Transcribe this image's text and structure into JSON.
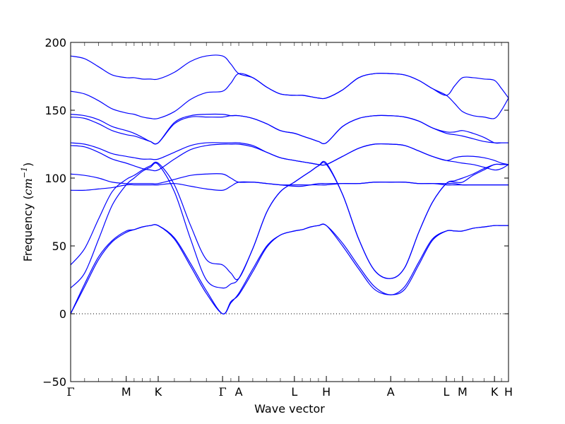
{
  "chart_data": {
    "type": "line",
    "title": "",
    "xlabel": "Wave vector",
    "ylabel": "Frequency (cm⁻¹)",
    "ylabel_parts": {
      "main": "Frequency (",
      "unit": "cm",
      "exp": "−1",
      "close": ")"
    },
    "ylim": [
      -50,
      200
    ],
    "yticks": [
      -50,
      0,
      50,
      100,
      150,
      200
    ],
    "ytick_labels": [
      "−50",
      "0",
      "50",
      "100",
      "150",
      "200"
    ],
    "xlim": [
      0,
      10
    ],
    "kpoints": [
      {
        "label": "Γ",
        "x": 0.0
      },
      {
        "label": "M",
        "x": 1.27
      },
      {
        "label": "K",
        "x": 2.0
      },
      {
        "label": "Γ",
        "x": 3.47
      },
      {
        "label": "A",
        "x": 3.84
      },
      {
        "label": "L",
        "x": 5.11
      },
      {
        "label": "H",
        "x": 5.84
      },
      {
        "label": "A",
        "x": 7.31
      },
      {
        "label": "L",
        "x": 8.58
      },
      {
        "label": "M",
        "x": 8.95
      },
      {
        "label": "K",
        "x": 9.68
      },
      {
        "label": "H",
        "x": 10.0
      }
    ],
    "zero_line": {
      "y": 0,
      "style": "dotted"
    },
    "grid": false,
    "series_color": "#0000ff",
    "series": [
      {
        "x": [
          0,
          0.32,
          0.64,
          0.95,
          1.27,
          1.45,
          1.64,
          1.82,
          2.0,
          2.37,
          2.74,
          3.1,
          3.47,
          3.66,
          3.84,
          4.16,
          4.48,
          4.79,
          5.11,
          5.29,
          5.48,
          5.66,
          5.84,
          6.21,
          6.58,
          6.94,
          7.31,
          7.63,
          7.95,
          8.26,
          8.58,
          8.77,
          8.95,
          9.19,
          9.44,
          9.68,
          9.84,
          10.0
        ],
        "y": [
          0,
          20,
          40,
          53,
          60,
          62,
          64,
          65,
          65,
          55,
          35,
          15,
          0,
          8,
          15,
          33,
          50,
          58,
          61,
          62,
          64,
          65,
          65,
          52,
          35,
          20,
          14,
          20,
          38,
          55,
          61,
          61,
          61,
          63,
          64,
          65,
          65,
          65
        ]
      },
      {
        "x": [
          0,
          0.32,
          0.64,
          0.95,
          1.27,
          1.45,
          1.64,
          1.82,
          2.0,
          2.37,
          2.74,
          3.1,
          3.47,
          3.66,
          3.84,
          4.16,
          4.48,
          4.79,
          5.11,
          5.29,
          5.48,
          5.66,
          5.84,
          6.21,
          6.58,
          6.94,
          7.31,
          7.63,
          7.95,
          8.26,
          8.58,
          8.77,
          8.95,
          9.19,
          9.44,
          9.68,
          9.84,
          10.0
        ],
        "y": [
          0,
          22,
          42,
          54,
          61,
          62,
          64,
          65,
          65,
          56,
          37,
          17,
          0,
          9,
          14,
          31,
          49,
          58,
          61,
          62,
          64,
          65,
          65,
          50,
          33,
          18,
          14,
          18,
          36,
          54,
          61,
          61,
          61,
          63,
          64,
          65,
          65,
          65
        ]
      },
      {
        "x": [
          0,
          0.32,
          0.64,
          0.95,
          1.27,
          1.45,
          1.64,
          1.82,
          2.0,
          2.37,
          2.74,
          3.1,
          3.47,
          3.66,
          3.84,
          4.16,
          4.48,
          4.79,
          5.11,
          5.29,
          5.48,
          5.66,
          5.84,
          6.21,
          6.58,
          6.94,
          7.31,
          7.63,
          7.95,
          8.26,
          8.58,
          8.77,
          8.95,
          9.19,
          9.44,
          9.68,
          9.84,
          10.0
        ],
        "y": [
          19,
          30,
          55,
          80,
          95,
          100,
          105,
          108,
          110,
          90,
          55,
          25,
          19,
          22,
          26,
          48,
          75,
          90,
          97,
          101,
          105,
          109,
          110,
          88,
          55,
          32,
          26,
          34,
          60,
          82,
          96,
          97,
          97,
          102,
          106,
          110,
          110,
          110
        ]
      },
      {
        "x": [
          0,
          0.32,
          0.64,
          0.95,
          1.27,
          1.45,
          1.64,
          1.82,
          2.0,
          2.37,
          2.74,
          3.1,
          3.47,
          3.66,
          3.84,
          4.16,
          4.48,
          4.79,
          5.11,
          5.29,
          5.48,
          5.66,
          5.84,
          6.21,
          6.58,
          6.94,
          7.31,
          7.63,
          7.95,
          8.26,
          8.58,
          8.77,
          8.95,
          9.19,
          9.44,
          9.68,
          9.84,
          10.0
        ],
        "y": [
          36,
          48,
          70,
          90,
          99,
          102,
          106,
          109,
          111,
          95,
          65,
          40,
          36,
          30,
          26,
          48,
          75,
          90,
          97,
          101,
          105,
          109,
          111,
          88,
          55,
          32,
          26,
          34,
          60,
          82,
          96,
          98,
          100,
          103,
          107,
          110,
          110,
          110
        ]
      },
      {
        "x": [
          0,
          0.32,
          0.64,
          0.95,
          1.27,
          1.45,
          1.64,
          1.82,
          2.0,
          2.37,
          2.74,
          3.1,
          3.47,
          3.66,
          3.84,
          4.16,
          4.48,
          4.79,
          5.11,
          5.29,
          5.48,
          5.66,
          5.84,
          6.21,
          6.58,
          6.94,
          7.31,
          7.63,
          7.95,
          8.26,
          8.58,
          8.77,
          8.95,
          9.19,
          9.44,
          9.68,
          9.84,
          10.0
        ],
        "y": [
          91,
          91,
          92,
          93,
          95,
          95,
          95,
          95,
          95,
          96,
          94,
          92,
          91,
          94,
          97,
          97,
          96,
          95,
          94,
          94,
          95,
          95,
          95,
          96,
          96,
          97,
          97,
          97,
          96,
          96,
          95,
          95,
          95,
          95,
          95,
          95,
          95,
          95
        ]
      },
      {
        "x": [
          0,
          0.32,
          0.64,
          0.95,
          1.27,
          1.45,
          1.64,
          1.82,
          2.0,
          2.37,
          2.74,
          3.1,
          3.47,
          3.66,
          3.84,
          4.16,
          4.48,
          4.79,
          5.11,
          5.29,
          5.48,
          5.66,
          5.84,
          6.21,
          6.58,
          6.94,
          7.31,
          7.63,
          7.95,
          8.26,
          8.58,
          8.77,
          8.95,
          9.19,
          9.44,
          9.68,
          9.84,
          10.0
        ],
        "y": [
          103,
          102,
          100,
          97,
          96,
          96,
          96,
          96,
          96,
          99,
          102,
          103,
          103,
          100,
          97,
          97,
          96,
          95,
          95,
          95,
          95,
          96,
          96,
          96,
          96,
          97,
          97,
          97,
          96,
          96,
          96,
          96,
          95,
          95,
          95,
          95,
          95,
          95
        ]
      },
      {
        "x": [
          0,
          0.32,
          0.64,
          0.95,
          1.27,
          1.45,
          1.64,
          1.82,
          2.0,
          2.37,
          2.74,
          3.1,
          3.47,
          3.66,
          3.84,
          4.16,
          4.48,
          4.79,
          5.11,
          5.29,
          5.48,
          5.66,
          5.84,
          6.21,
          6.58,
          6.94,
          7.31,
          7.63,
          7.95,
          8.26,
          8.58,
          8.77,
          8.95,
          9.19,
          9.44,
          9.68,
          9.84,
          10.0
        ],
        "y": [
          124,
          123,
          119,
          114,
          111,
          109,
          107,
          106,
          106,
          114,
          121,
          124,
          125,
          125,
          125,
          123,
          119,
          115,
          113,
          112,
          111,
          110,
          110,
          116,
          122,
          125,
          125,
          124,
          120,
          116,
          113,
          112,
          111,
          110,
          108,
          106,
          107,
          110
        ]
      },
      {
        "x": [
          0,
          0.32,
          0.64,
          0.95,
          1.27,
          1.45,
          1.64,
          1.82,
          2.0,
          2.37,
          2.74,
          3.1,
          3.47,
          3.66,
          3.84,
          4.16,
          4.48,
          4.79,
          5.11,
          5.29,
          5.48,
          5.66,
          5.84,
          6.21,
          6.58,
          6.94,
          7.31,
          7.63,
          7.95,
          8.26,
          8.58,
          8.77,
          8.95,
          9.19,
          9.44,
          9.68,
          9.84,
          10.0
        ],
        "y": [
          126,
          125,
          122,
          118,
          116,
          115,
          114,
          114,
          114,
          119,
          124,
          126,
          126,
          126,
          126,
          124,
          119,
          115,
          113,
          112,
          111,
          110,
          110,
          116,
          122,
          125,
          125,
          124,
          120,
          116,
          113,
          115,
          116,
          116,
          115,
          113,
          111,
          110
        ]
      },
      {
        "x": [
          0,
          0.32,
          0.64,
          0.95,
          1.27,
          1.45,
          1.64,
          1.82,
          2.0,
          2.37,
          2.74,
          3.1,
          3.47,
          3.66,
          3.84,
          4.16,
          4.48,
          4.79,
          5.11,
          5.29,
          5.48,
          5.66,
          5.84,
          6.21,
          6.58,
          6.94,
          7.31,
          7.63,
          7.95,
          8.26,
          8.58,
          8.77,
          8.95,
          9.19,
          9.44,
          9.68,
          9.84,
          10.0
        ],
        "y": [
          145,
          144,
          140,
          135,
          132,
          131,
          129,
          127,
          126,
          140,
          145,
          145,
          145,
          146,
          146,
          144,
          140,
          135,
          133,
          131,
          129,
          127,
          126,
          138,
          144,
          146,
          146,
          145,
          142,
          137,
          133,
          132,
          131,
          129,
          127,
          126,
          126,
          126
        ]
      },
      {
        "x": [
          0,
          0.32,
          0.64,
          0.95,
          1.27,
          1.45,
          1.64,
          1.82,
          2.0,
          2.37,
          2.74,
          3.1,
          3.47,
          3.66,
          3.84,
          4.16,
          4.48,
          4.79,
          5.11,
          5.29,
          5.48,
          5.66,
          5.84,
          6.21,
          6.58,
          6.94,
          7.31,
          7.63,
          7.95,
          8.26,
          8.58,
          8.77,
          8.95,
          9.19,
          9.44,
          9.68,
          9.84,
          10.0
        ],
        "y": [
          147,
          146,
          143,
          138,
          135,
          133,
          130,
          127,
          126,
          141,
          146,
          147,
          147,
          146,
          146,
          144,
          140,
          135,
          133,
          131,
          129,
          127,
          126,
          138,
          144,
          146,
          146,
          145,
          142,
          137,
          134,
          134,
          135,
          133,
          130,
          126,
          126,
          126
        ]
      },
      {
        "x": [
          0,
          0.32,
          0.64,
          0.95,
          1.27,
          1.45,
          1.64,
          1.82,
          2.0,
          2.37,
          2.74,
          3.1,
          3.47,
          3.66,
          3.84,
          4.16,
          4.48,
          4.79,
          5.11,
          5.29,
          5.48,
          5.66,
          5.84,
          6.21,
          6.58,
          6.94,
          7.31,
          7.63,
          7.95,
          8.26,
          8.58,
          8.77,
          8.95,
          9.19,
          9.44,
          9.68,
          9.84,
          10.0
        ],
        "y": [
          164,
          162,
          157,
          151,
          148,
          147,
          145,
          144,
          144,
          149,
          158,
          163,
          164,
          170,
          177,
          174,
          167,
          162,
          161,
          161,
          160,
          159,
          159,
          165,
          174,
          177,
          177,
          176,
          172,
          166,
          161,
          155,
          149,
          146,
          145,
          144,
          150,
          159
        ]
      },
      {
        "x": [
          0,
          0.32,
          0.64,
          0.95,
          1.27,
          1.45,
          1.64,
          1.82,
          2.0,
          2.37,
          2.74,
          3.1,
          3.47,
          3.66,
          3.84,
          4.16,
          4.48,
          4.79,
          5.11,
          5.29,
          5.48,
          5.66,
          5.84,
          6.21,
          6.58,
          6.94,
          7.31,
          7.63,
          7.95,
          8.26,
          8.58,
          8.77,
          8.95,
          9.19,
          9.44,
          9.68,
          9.84,
          10.0
        ],
        "y": [
          190,
          188,
          182,
          176,
          174,
          174,
          173,
          173,
          173,
          178,
          186,
          190,
          190,
          184,
          177,
          174,
          167,
          162,
          161,
          161,
          160,
          159,
          159,
          165,
          174,
          177,
          177,
          176,
          172,
          166,
          161,
          168,
          174,
          174,
          173,
          172,
          166,
          159
        ]
      }
    ]
  }
}
